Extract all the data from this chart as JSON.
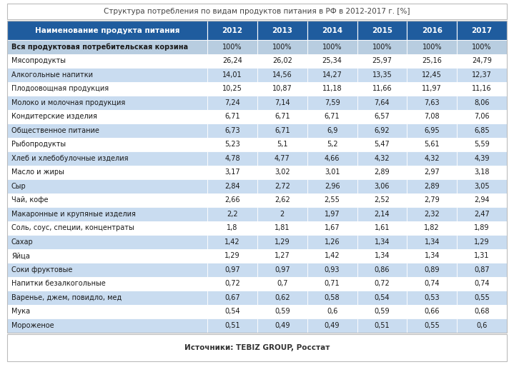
{
  "title": "Структура потребления по видам продуктов питания в РФ в 2012-2017 г. [%]",
  "footer": "Источники: TEBIZ GROUP, Росстат",
  "columns": [
    "Наименование продукта питания",
    "2012",
    "2013",
    "2014",
    "2015",
    "2016",
    "2017"
  ],
  "rows": [
    [
      "Вся продуктовая потребительская корзина",
      "100%",
      "100%",
      "100%",
      "100%",
      "100%",
      "100%"
    ],
    [
      "Мясопродукты",
      "26,24",
      "26,02",
      "25,34",
      "25,97",
      "25,16",
      "24,79"
    ],
    [
      "Алкогольные напитки",
      "14,01",
      "14,56",
      "14,27",
      "13,35",
      "12,45",
      "12,37"
    ],
    [
      "Плодоовощная продукция",
      "10,25",
      "10,87",
      "11,18",
      "11,66",
      "11,97",
      "11,16"
    ],
    [
      "Молоко и молочная продукция",
      "7,24",
      "7,14",
      "7,59",
      "7,64",
      "7,63",
      "8,06"
    ],
    [
      "Кондитерские изделия",
      "6,71",
      "6,71",
      "6,71",
      "6,57",
      "7,08",
      "7,06"
    ],
    [
      "Общественное питание",
      "6,73",
      "6,71",
      "6,9",
      "6,92",
      "6,95",
      "6,85"
    ],
    [
      "Рыбопродукты",
      "5,23",
      "5,1",
      "5,2",
      "5,47",
      "5,61",
      "5,59"
    ],
    [
      "Хлеб и хлебобулочные изделия",
      "4,78",
      "4,77",
      "4,66",
      "4,32",
      "4,32",
      "4,39"
    ],
    [
      "Масло и жиры",
      "3,17",
      "3,02",
      "3,01",
      "2,89",
      "2,97",
      "3,18"
    ],
    [
      "Сыр",
      "2,84",
      "2,72",
      "2,96",
      "3,06",
      "2,89",
      "3,05"
    ],
    [
      "Чай, кофе",
      "2,66",
      "2,62",
      "2,55",
      "2,52",
      "2,79",
      "2,94"
    ],
    [
      "Макаронные и крупяные изделия",
      "2,2",
      "2",
      "1,97",
      "2,14",
      "2,32",
      "2,47"
    ],
    [
      "Соль, соус, специи, концентраты",
      "1,8",
      "1,81",
      "1,67",
      "1,61",
      "1,82",
      "1,89"
    ],
    [
      "Сахар",
      "1,42",
      "1,29",
      "1,26",
      "1,34",
      "1,34",
      "1,29"
    ],
    [
      "Яйца",
      "1,29",
      "1,27",
      "1,42",
      "1,34",
      "1,34",
      "1,31"
    ],
    [
      "Соки фруктовые",
      "0,97",
      "0,97",
      "0,93",
      "0,86",
      "0,89",
      "0,87"
    ],
    [
      "Напитки безалкогольные",
      "0,72",
      "0,7",
      "0,71",
      "0,72",
      "0,74",
      "0,74"
    ],
    [
      "Варенье, джем, повидло, мед",
      "0,67",
      "0,62",
      "0,58",
      "0,54",
      "0,53",
      "0,55"
    ],
    [
      "Мука",
      "0,54",
      "0,59",
      "0,6",
      "0,59",
      "0,66",
      "0,68"
    ],
    [
      "Мороженое",
      "0,51",
      "0,49",
      "0,49",
      "0,51",
      "0,55",
      "0,6"
    ]
  ],
  "header_bg": "#1F5C9E",
  "header_text": "#FFFFFF",
  "row_bg_light": "#C9DCF0",
  "row_bg_white": "#FFFFFF",
  "special_row_bg": "#B8CDE0",
  "title_border": "#BBBBBB",
  "cell_border": "#FFFFFF",
  "outer_border": "#BBBBBB",
  "text_color": "#1A1A1A"
}
